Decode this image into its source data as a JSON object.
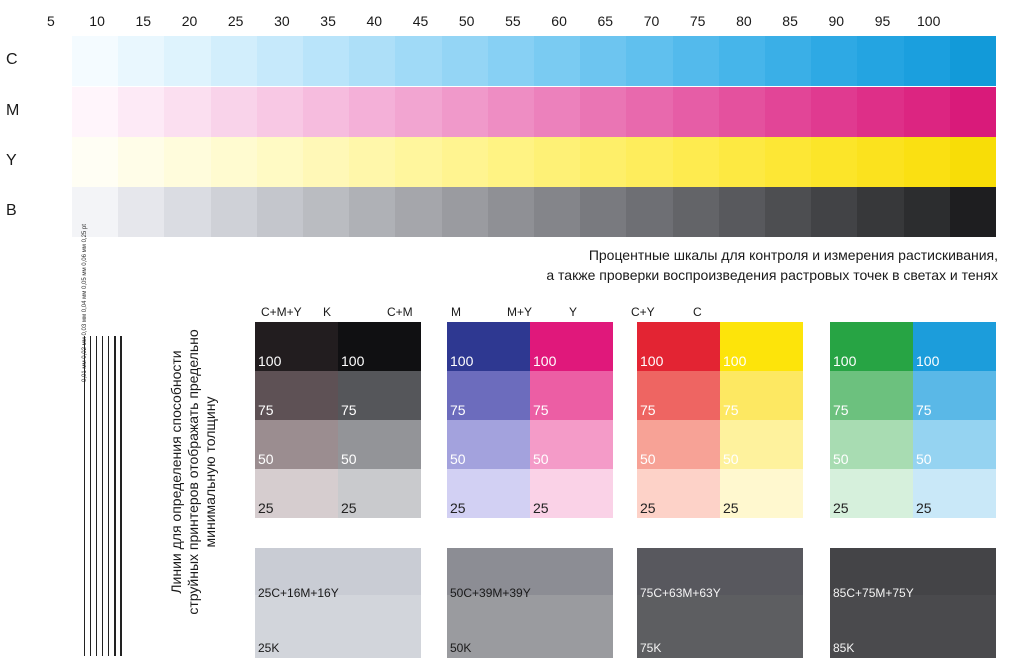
{
  "percent_labels": [
    "5",
    "10",
    "15",
    "20",
    "25",
    "30",
    "35",
    "40",
    "45",
    "50",
    "55",
    "60",
    "65",
    "70",
    "75",
    "80",
    "85",
    "90",
    "95",
    "100"
  ],
  "rows": [
    {
      "label": "C",
      "colors": [
        "#f4fbff",
        "#e9f7fe",
        "#def3fd",
        "#d2eefc",
        "#c6e9fb",
        "#b9e4fa",
        "#addff8",
        "#a0daf7",
        "#94d5f5",
        "#87d0f4",
        "#7acbf2",
        "#6dc5f0",
        "#60c0ee",
        "#53baec",
        "#46b5ea",
        "#3aafe7",
        "#2ea9e4",
        "#24a4e1",
        "#1b9fde",
        "#129ad9"
      ]
    },
    {
      "label": "M",
      "colors": [
        "#fff5fb",
        "#fdeaf6",
        "#fbdff0",
        "#f9d3ea",
        "#f8c8e4",
        "#f6bcde",
        "#f4b0d8",
        "#f2a5d1",
        "#f099ca",
        "#ee8dc3",
        "#ec81bc",
        "#ea75b4",
        "#e869ad",
        "#e65da6",
        "#e4519e",
        "#e24597",
        "#e03a90",
        "#de2f88",
        "#dc2581",
        "#d91a7a"
      ]
    },
    {
      "label": "Y",
      "colors": [
        "#fffef4",
        "#fffde8",
        "#fffcdc",
        "#fffbd0",
        "#fffac4",
        "#fff8b7",
        "#fff7aa",
        "#fff69d",
        "#fff490",
        "#fff383",
        "#fef176",
        "#feef69",
        "#feed5c",
        "#feeb4f",
        "#fde942",
        "#fde735",
        "#fce529",
        "#fbe21e",
        "#fae012",
        "#f8dd07"
      ]
    },
    {
      "label": "B",
      "colors": [
        "#f3f4f7",
        "#e6e7ec",
        "#dadce2",
        "#cfd1d7",
        "#c4c6cc",
        "#babcc1",
        "#afb1b6",
        "#a5a6ab",
        "#9a9ba0",
        "#8f9095",
        "#84858a",
        "#797a7f",
        "#6e6f74",
        "#636468",
        "#58595d",
        "#4d4e51",
        "#424346",
        "#37383a",
        "#2c2d2f",
        "#1e1e20"
      ]
    }
  ],
  "caption": {
    "line1": "Процентные шкалы для контроля и измерения растискивания,",
    "line2": "а также проверки воспроизведения растровых точек в светах и тенях"
  },
  "lines_block": {
    "widths": [
      "0,01 мм",
      "0,02 мм",
      "0,03 мм",
      "0,04 мм",
      "0,05 мм",
      "0,06 мм",
      "0,25 pt"
    ]
  },
  "vertical_caption": {
    "line1": "Линии для определения способности",
    "line2": "струйных принтеров отображать предельно",
    "line3": "минимальную толщину"
  },
  "groups": [
    {
      "heads": [
        "C+M+Y",
        "K",
        "C+M"
      ],
      "left": [
        "#221d1f",
        "#5e5155",
        "#9b8d90",
        "#d6cdcf"
      ],
      "right": [
        "#101012",
        "#55565a",
        "#939498",
        "#c9cacd"
      ],
      "nums": [
        "100",
        "75",
        "50",
        "25"
      ]
    },
    {
      "heads": [
        "M",
        "M+Y",
        "Y"
      ],
      "left": [
        "#2e3891",
        "#6c6cbd",
        "#a3a2dd",
        "#d2d0f3"
      ],
      "right": [
        "#e0187b",
        "#ec5ea4",
        "#f49bc8",
        "#fad2e7"
      ],
      "nums": [
        "100",
        "75",
        "50",
        "25"
      ]
    },
    {
      "heads": [
        "C+Y",
        "C"
      ],
      "left": [
        "#e32433",
        "#ee6562",
        "#f7a296",
        "#fdd2c8"
      ],
      "right": [
        "#fde40a",
        "#fde862",
        "#fef29d",
        "#fff8cf"
      ],
      "nums": [
        "100",
        "75",
        "50",
        "25"
      ]
    },
    {
      "heads": [],
      "left": [
        "#27a444",
        "#6cc17e",
        "#a8dcb2",
        "#d6f0dc"
      ],
      "right": [
        "#1c9ddb",
        "#5ab8e7",
        "#95d3f1",
        "#c9e8f8"
      ],
      "nums": [
        "100",
        "75",
        "50",
        "25"
      ]
    }
  ],
  "gray_panels": [
    {
      "mix": "25C+16M+16Y",
      "k": "25K",
      "top": "#c9ccd4",
      "bot": "#d2d5db"
    },
    {
      "mix": "50C+39M+39Y",
      "k": "50K",
      "top": "#8c8d94",
      "bot": "#9a9b9f"
    },
    {
      "mix": "75C+63M+63Y",
      "k": "75K",
      "top": "#58585e",
      "bot": "#5d5e61"
    },
    {
      "mix": "85C+75M+75Y",
      "k": "85K",
      "top": "#444447",
      "bot": "#4a4a4d"
    }
  ]
}
